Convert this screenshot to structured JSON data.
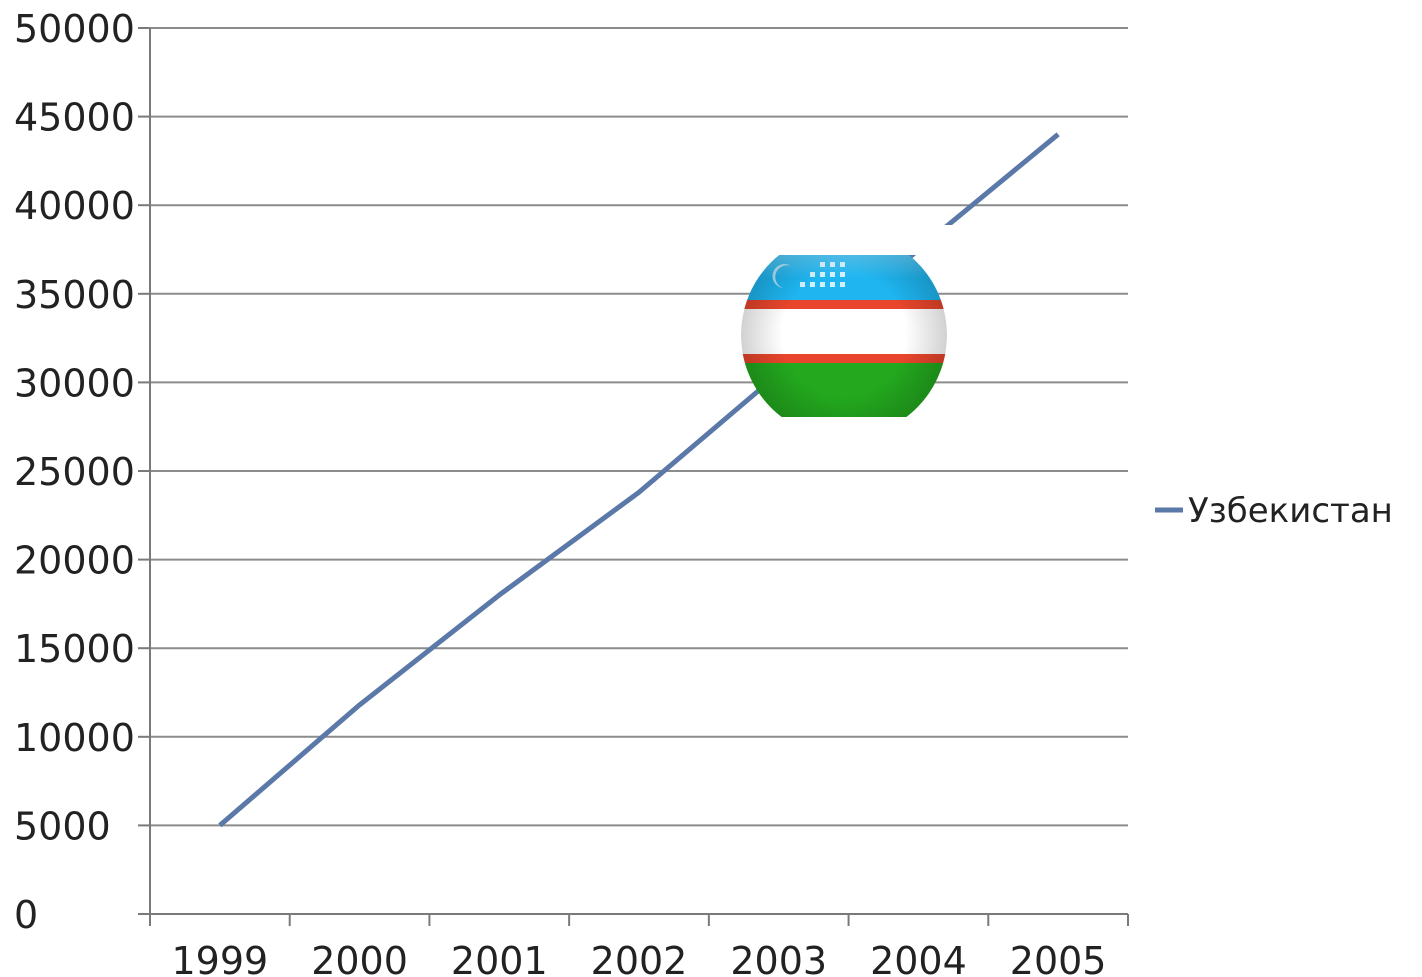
{
  "chart_data": {
    "type": "line",
    "categories": [
      "1999",
      "2000",
      "2001",
      "2002",
      "2003",
      "2004",
      "2005"
    ],
    "series": [
      {
        "name": "Узбекистан",
        "color": "#5b79a8",
        "values": [
          5000,
          11800,
          18000,
          23800,
          30500,
          37500,
          44000
        ]
      }
    ],
    "ylim": [
      0,
      50000
    ],
    "yticks": [
      0,
      5000,
      10000,
      15000,
      20000,
      25000,
      30000,
      35000,
      40000,
      45000,
      50000
    ],
    "grid": true,
    "legend": "right",
    "title": "",
    "xlabel": "",
    "ylabel": "",
    "decoration": {
      "icon": "uzbekistan-flag-ball-icon",
      "colors": {
        "blue": "#1eb5f0",
        "red": "#e8452c",
        "white": "#ffffff",
        "green": "#23a81e"
      }
    }
  }
}
